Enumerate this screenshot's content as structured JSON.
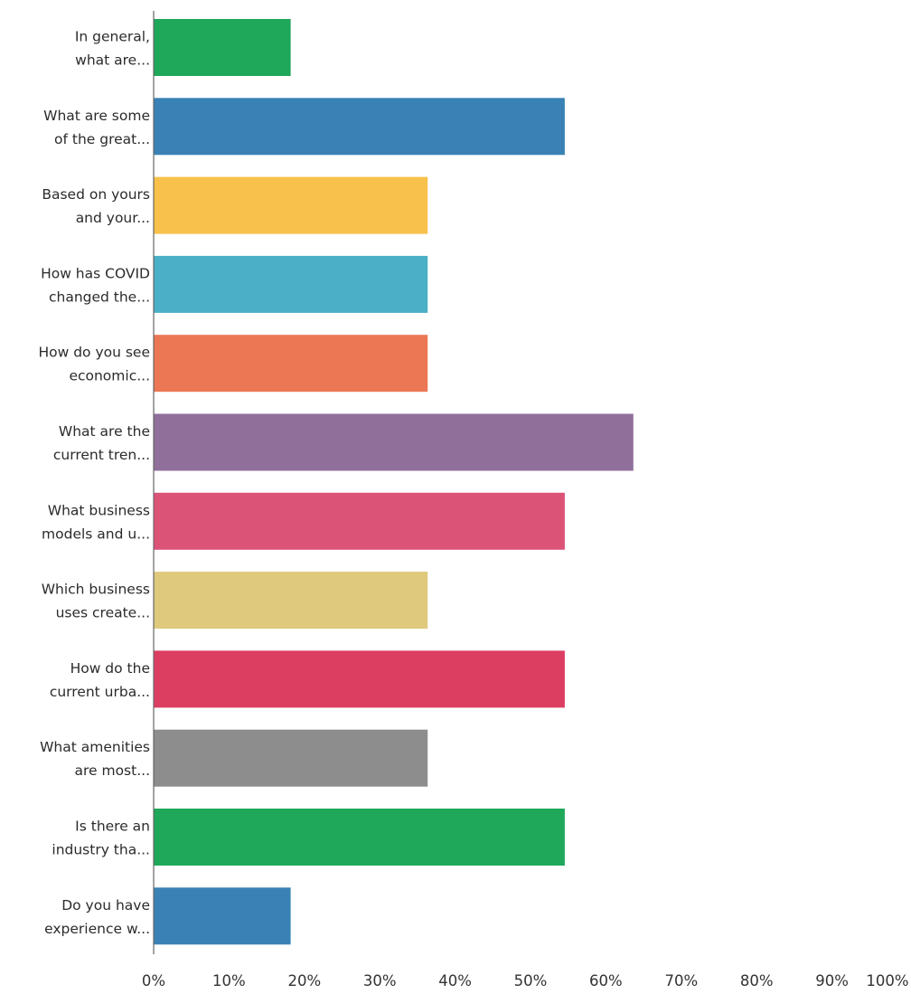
{
  "chart_data": {
    "type": "bar",
    "orientation": "horizontal",
    "categories": [
      [
        "In general,",
        "what are..."
      ],
      [
        "What are some",
        "of the great..."
      ],
      [
        "Based on yours",
        "and your..."
      ],
      [
        "How has COVID",
        "changed the..."
      ],
      [
        "How do you see",
        "economic..."
      ],
      [
        "What are the",
        "current tren..."
      ],
      [
        "What business",
        "models and u..."
      ],
      [
        "Which business",
        "uses create..."
      ],
      [
        "How do the",
        "current urba..."
      ],
      [
        "What amenities",
        "are most..."
      ],
      [
        "Is there an",
        "industry tha..."
      ],
      [
        "Do you have",
        "experience w..."
      ]
    ],
    "values": [
      18.18,
      54.55,
      36.36,
      36.36,
      36.36,
      63.64,
      54.55,
      36.36,
      54.55,
      36.36,
      54.55,
      18.18
    ],
    "colors": [
      "#1fa75a",
      "#3a82b5",
      "#f8c14b",
      "#4aafc7",
      "#eb7755",
      "#90709b",
      "#dc5378",
      "#dec97d",
      "#dc3e62",
      "#8d8d8d",
      "#1fa75a",
      "#3a82b5"
    ],
    "xlim": [
      0,
      100
    ],
    "xticks": [
      "0%",
      "10%",
      "20%",
      "30%",
      "40%",
      "50%",
      "60%",
      "70%",
      "80%",
      "90%",
      "100%"
    ],
    "title": "",
    "xlabel": "",
    "ylabel": "",
    "grid": false,
    "legend": "none"
  }
}
